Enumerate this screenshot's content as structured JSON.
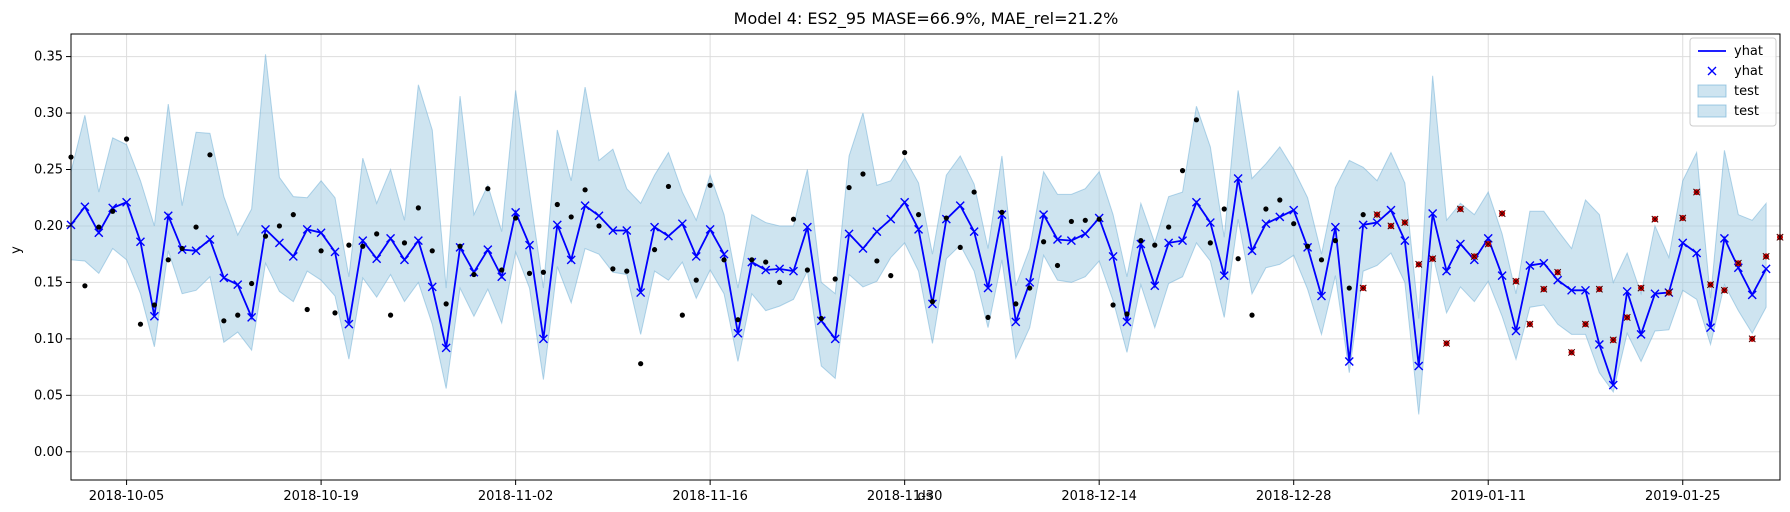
{
  "chart_data": {
    "type": "line",
    "title": "Model 4: ES2_95 MASE=66.9%, MAE_rel=21.2%",
    "xlabel": "ds",
    "ylabel": "y",
    "x_range": [
      "2018-10-01",
      "2019-02-01"
    ],
    "ylim": [
      -0.025,
      0.37
    ],
    "yticks": [
      0.0,
      0.05,
      0.1,
      0.15,
      0.2,
      0.25,
      0.3,
      0.35
    ],
    "ytick_labels": [
      "0.00",
      "0.05",
      "0.10",
      "0.15",
      "0.20",
      "0.25",
      "0.30",
      "0.35"
    ],
    "xticks": [
      "2018-10-05",
      "2018-10-19",
      "2018-11-02",
      "2018-11-16",
      "2018-11-30",
      "2018-12-14",
      "2018-12-28",
      "2019-01-11",
      "2019-01-25"
    ],
    "grid": true,
    "legend_position": "top-right",
    "legend": [
      {
        "label": "yhat",
        "kind": "line"
      },
      {
        "label": "yhat",
        "kind": "marker-x"
      },
      {
        "label": "test",
        "kind": "band"
      },
      {
        "label": "test",
        "kind": "band"
      }
    ],
    "colors": {
      "forecast": "#0000ff",
      "band_fill": "#a6cee3",
      "band_edge": "#6baed6",
      "actual": "#000000",
      "test_point": "#cc0000",
      "grid": "#dddddd"
    },
    "test_start": "2019-01-03",
    "series": [
      {
        "name": "yhat",
        "start_date": "2018-10-01",
        "step_days": 1,
        "yhat": [
          0.201,
          0.217,
          0.194,
          0.216,
          0.221,
          0.186,
          0.12,
          0.209,
          0.179,
          0.178,
          0.188,
          0.154,
          0.148,
          0.119,
          0.197,
          0.185,
          0.173,
          0.197,
          0.194,
          0.177,
          0.113,
          0.187,
          0.171,
          0.189,
          0.17,
          0.187,
          0.146,
          0.092,
          0.181,
          0.159,
          0.179,
          0.155,
          0.212,
          0.183,
          0.1,
          0.201,
          0.17,
          0.218,
          0.209,
          0.196,
          0.196,
          0.141,
          0.199,
          0.191,
          0.202,
          0.173,
          0.197,
          0.175,
          0.105,
          0.168,
          0.161,
          0.162,
          0.16,
          0.199,
          0.116,
          0.1,
          0.193,
          0.18,
          0.195,
          0.206,
          0.221,
          0.197,
          0.131,
          0.206,
          0.218,
          0.195,
          0.145,
          0.21,
          0.115,
          0.15,
          0.21,
          0.188,
          0.187,
          0.193,
          0.207,
          0.173,
          0.115,
          0.184,
          0.147,
          0.185,
          0.187,
          0.221,
          0.203,
          0.156,
          0.242,
          0.178,
          0.202,
          0.208,
          0.214,
          0.181,
          0.138,
          0.199,
          0.08,
          0.201,
          0.203,
          0.214,
          0.187,
          0.076,
          0.211,
          0.16,
          0.184,
          0.17,
          0.189,
          0.156,
          0.107,
          0.165,
          0.167,
          0.152,
          0.143,
          0.143,
          0.095,
          0.059,
          0.142,
          0.104,
          0.14,
          0.141,
          0.185,
          0.176,
          0.11,
          0.189,
          0.163,
          0.139,
          0.162
        ],
        "lower": [
          0.17,
          0.169,
          0.158,
          0.18,
          0.17,
          0.14,
          0.093,
          0.178,
          0.14,
          0.143,
          0.155,
          0.097,
          0.106,
          0.09,
          0.167,
          0.142,
          0.133,
          0.16,
          0.152,
          0.138,
          0.082,
          0.154,
          0.137,
          0.157,
          0.133,
          0.15,
          0.113,
          0.056,
          0.145,
          0.12,
          0.144,
          0.114,
          0.177,
          0.145,
          0.064,
          0.164,
          0.132,
          0.18,
          0.175,
          0.159,
          0.157,
          0.104,
          0.16,
          0.152,
          0.168,
          0.136,
          0.161,
          0.14,
          0.08,
          0.14,
          0.125,
          0.129,
          0.135,
          0.16,
          0.076,
          0.065,
          0.157,
          0.146,
          0.151,
          0.172,
          0.185,
          0.16,
          0.096,
          0.171,
          0.183,
          0.16,
          0.11,
          0.17,
          0.083,
          0.11,
          0.174,
          0.152,
          0.15,
          0.155,
          0.169,
          0.134,
          0.088,
          0.148,
          0.11,
          0.149,
          0.155,
          0.185,
          0.169,
          0.119,
          0.206,
          0.14,
          0.163,
          0.166,
          0.174,
          0.144,
          0.104,
          0.156,
          0.07,
          0.16,
          0.165,
          0.176,
          0.15,
          0.033,
          0.175,
          0.123,
          0.146,
          0.133,
          0.151,
          0.12,
          0.082,
          0.128,
          0.13,
          0.113,
          0.104,
          0.104,
          0.07,
          0.053,
          0.105,
          0.08,
          0.107,
          0.108,
          0.143,
          0.135,
          0.095,
          0.148,
          0.125,
          0.105,
          0.128
        ],
        "upper": [
          0.248,
          0.298,
          0.23,
          0.278,
          0.272,
          0.24,
          0.2,
          0.308,
          0.218,
          0.283,
          0.282,
          0.226,
          0.192,
          0.215,
          0.352,
          0.243,
          0.226,
          0.225,
          0.24,
          0.225,
          0.155,
          0.26,
          0.22,
          0.25,
          0.205,
          0.325,
          0.285,
          0.145,
          0.315,
          0.21,
          0.236,
          0.195,
          0.32,
          0.23,
          0.145,
          0.285,
          0.24,
          0.323,
          0.258,
          0.268,
          0.233,
          0.22,
          0.245,
          0.265,
          0.23,
          0.205,
          0.245,
          0.21,
          0.145,
          0.21,
          0.203,
          0.2,
          0.2,
          0.25,
          0.15,
          0.14,
          0.262,
          0.3,
          0.236,
          0.24,
          0.26,
          0.238,
          0.175,
          0.245,
          0.262,
          0.237,
          0.18,
          0.262,
          0.147,
          0.18,
          0.248,
          0.228,
          0.228,
          0.233,
          0.248,
          0.21,
          0.155,
          0.22,
          0.185,
          0.226,
          0.23,
          0.306,
          0.27,
          0.19,
          0.32,
          0.242,
          0.255,
          0.27,
          0.25,
          0.225,
          0.175,
          0.234,
          0.258,
          0.252,
          0.24,
          0.265,
          0.238,
          0.118,
          0.333,
          0.205,
          0.22,
          0.21,
          0.23,
          0.193,
          0.14,
          0.213,
          0.213,
          0.196,
          0.18,
          0.223,
          0.21,
          0.15,
          0.176,
          0.14,
          0.2,
          0.172,
          0.24,
          0.265,
          0.136,
          0.267,
          0.21,
          0.205,
          0.22
        ]
      },
      {
        "name": "actual",
        "dates": [
          "2018-10-01",
          "2018-10-02",
          "2018-10-03",
          "2018-10-04",
          "2018-10-05",
          "2018-10-06",
          "2018-10-07",
          "2018-10-08",
          "2018-10-09",
          "2018-10-10",
          "2018-10-11",
          "2018-10-12",
          "2018-10-13",
          "2018-10-14",
          "2018-10-15",
          "2018-10-16",
          "2018-10-17",
          "2018-10-18",
          "2018-10-19",
          "2018-10-20",
          "2018-10-21",
          "2018-10-22",
          "2018-10-23",
          "2018-10-24",
          "2018-10-25",
          "2018-10-26",
          "2018-10-27",
          "2018-10-28",
          "2018-10-29",
          "2018-10-30",
          "2018-10-31",
          "2018-11-01",
          "2018-11-02",
          "2018-11-03",
          "2018-11-04",
          "2018-11-05",
          "2018-11-06",
          "2018-11-07",
          "2018-11-08",
          "2018-11-09",
          "2018-11-10",
          "2018-11-11",
          "2018-11-12",
          "2018-11-13",
          "2018-11-14",
          "2018-11-15",
          "2018-11-16",
          "2018-11-17",
          "2018-11-18",
          "2018-11-19",
          "2018-11-20",
          "2018-11-21",
          "2018-11-22",
          "2018-11-23",
          "2018-11-24",
          "2018-11-25",
          "2018-11-26",
          "2018-11-27",
          "2018-11-28",
          "2018-11-29",
          "2018-11-30",
          "2018-12-01",
          "2018-12-02",
          "2018-12-03",
          "2018-12-04",
          "2018-12-05",
          "2018-12-06",
          "2018-12-07",
          "2018-12-08",
          "2018-12-09",
          "2018-12-10",
          "2018-12-11",
          "2018-12-12",
          "2018-12-13",
          "2018-12-14",
          "2018-12-15",
          "2018-12-16",
          "2018-12-17",
          "2018-12-18",
          "2018-12-19",
          "2018-12-20",
          "2018-12-21",
          "2018-12-22",
          "2018-12-23",
          "2018-12-24",
          "2018-12-25",
          "2018-12-26",
          "2018-12-27",
          "2018-12-28",
          "2018-12-29",
          "2018-12-30",
          "2018-12-31",
          "2019-01-01",
          "2019-01-02"
        ],
        "values": [
          0.261,
          0.147,
          0.199,
          0.213,
          0.277,
          0.113,
          0.13,
          0.17,
          0.18,
          0.199,
          0.263,
          0.116,
          0.121,
          0.149,
          0.191,
          0.2,
          0.21,
          0.126,
          0.178,
          0.123,
          0.183,
          0.182,
          0.193,
          0.121,
          0.185,
          0.216,
          0.178,
          0.131,
          0.182,
          0.157,
          0.233,
          0.161,
          0.207,
          0.158,
          0.159,
          0.219,
          0.208,
          0.232,
          0.2,
          0.162,
          0.16,
          0.078,
          0.179,
          0.235,
          0.121,
          0.152,
          0.236,
          0.17,
          0.117,
          0.17,
          0.168,
          0.15,
          0.206,
          0.161,
          0.118,
          0.153,
          0.234,
          0.246,
          0.169,
          0.156,
          0.265,
          0.21,
          0.133,
          0.207,
          0.181,
          0.23,
          0.119,
          0.212,
          0.131,
          0.145,
          0.186,
          0.165,
          0.204,
          0.205,
          0.206,
          0.13,
          0.122,
          0.187,
          0.183,
          0.199,
          0.249,
          0.294,
          0.185,
          0.215,
          0.171,
          0.121,
          0.215,
          0.223,
          0.202,
          0.182,
          0.17,
          0.187,
          0.145,
          0.21
        ]
      },
      {
        "name": "test",
        "dates": [
          "2019-01-02",
          "2019-01-03",
          "2019-01-04",
          "2019-01-05",
          "2019-01-06",
          "2019-01-07",
          "2019-01-08",
          "2019-01-09",
          "2019-01-10",
          "2019-01-11",
          "2019-01-12",
          "2019-01-13",
          "2019-01-14",
          "2019-01-15",
          "2019-01-16",
          "2019-01-17",
          "2019-01-18",
          "2019-01-19",
          "2019-01-20",
          "2019-01-21",
          "2019-01-22",
          "2019-01-23",
          "2019-01-24",
          "2019-01-25",
          "2019-01-26",
          "2019-01-27",
          "2019-01-28",
          "2019-01-29",
          "2019-01-30",
          "2019-01-31",
          "2019-02-01"
        ],
        "values": [
          0.145,
          0.21,
          0.2,
          0.203,
          0.166,
          0.171,
          0.096,
          0.215,
          0.173,
          0.184,
          0.211,
          0.151,
          0.113,
          0.144,
          0.159,
          0.088,
          0.113,
          0.144,
          0.099,
          0.119,
          0.145,
          0.206,
          0.141,
          0.207,
          0.23,
          0.148,
          0.143,
          0.167,
          0.1,
          0.173,
          0.19
        ]
      }
    ]
  }
}
